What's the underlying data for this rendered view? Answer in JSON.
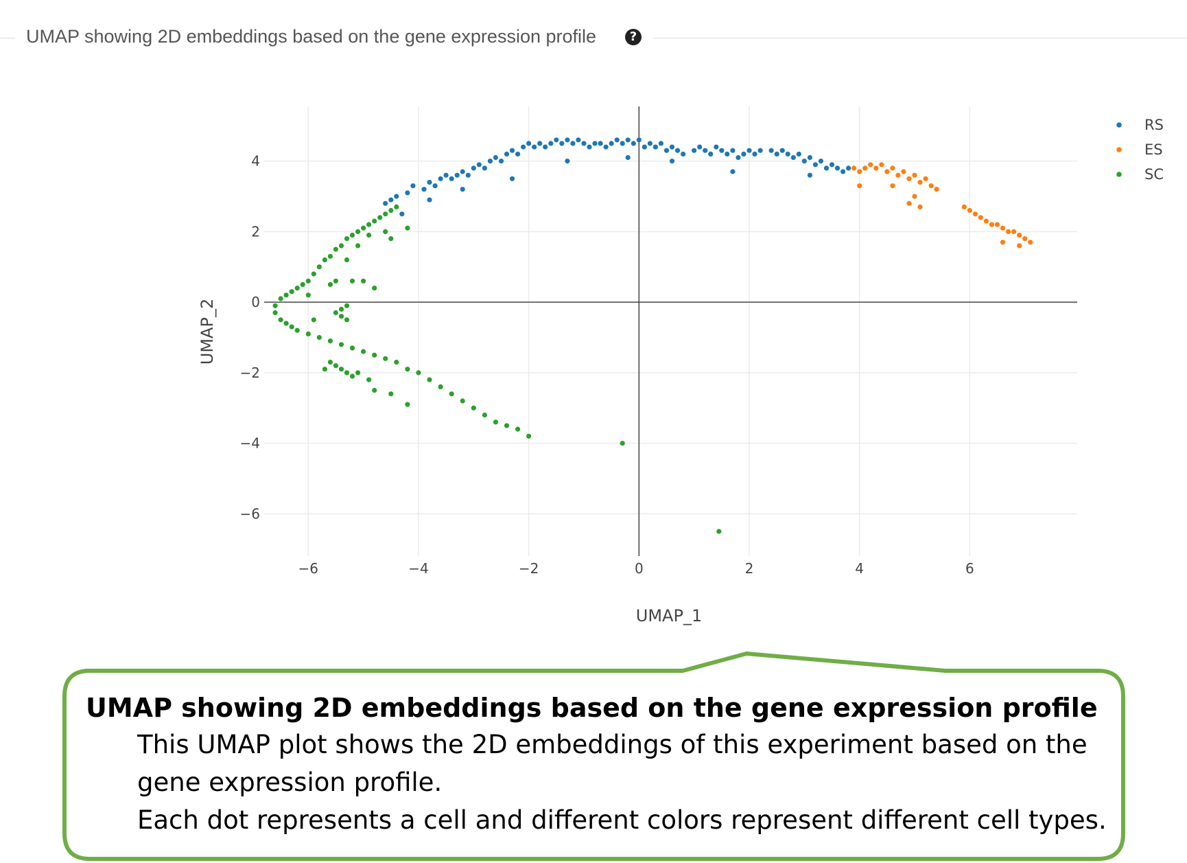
{
  "header": {
    "title": "UMAP showing 2D embeddings based on the gene expression profile",
    "help_icon": "question-circle-icon"
  },
  "chart_data": {
    "type": "scatter",
    "xlabel": "UMAP_1",
    "ylabel": "UMAP_2",
    "xlim": [
      -6.8,
      7.95
    ],
    "ylim": [
      -7.2,
      5.55
    ],
    "xticks": [
      -6,
      -4,
      -2,
      0,
      2,
      4,
      6
    ],
    "yticks": [
      -6,
      -4,
      -2,
      0,
      2,
      4
    ],
    "xtick_labels": [
      "−6",
      "−4",
      "−2",
      "0",
      "2",
      "4",
      "6"
    ],
    "ytick_labels": [
      "−6",
      "−4",
      "−2",
      "0",
      "2",
      "4"
    ],
    "grid": true,
    "zero_lines": true,
    "legend_position": "top-right",
    "series": [
      {
        "name": "RS",
        "color": "#1f77b4",
        "points": [
          [
            -4.6,
            2.8
          ],
          [
            -4.5,
            2.9
          ],
          [
            -4.4,
            3.0
          ],
          [
            -4.2,
            3.1
          ],
          [
            -4.1,
            3.3
          ],
          [
            -3.9,
            3.2
          ],
          [
            -3.8,
            3.4
          ],
          [
            -3.7,
            3.3
          ],
          [
            -3.6,
            3.5
          ],
          [
            -3.5,
            3.6
          ],
          [
            -3.4,
            3.5
          ],
          [
            -3.3,
            3.6
          ],
          [
            -3.2,
            3.7
          ],
          [
            -3.1,
            3.6
          ],
          [
            -3.0,
            3.8
          ],
          [
            -2.9,
            3.9
          ],
          [
            -2.8,
            3.8
          ],
          [
            -2.7,
            4.0
          ],
          [
            -2.6,
            4.1
          ],
          [
            -2.5,
            4.0
          ],
          [
            -2.4,
            4.2
          ],
          [
            -2.3,
            4.3
          ],
          [
            -2.2,
            4.2
          ],
          [
            -2.1,
            4.4
          ],
          [
            -2.0,
            4.5
          ],
          [
            -1.9,
            4.4
          ],
          [
            -1.8,
            4.5
          ],
          [
            -1.7,
            4.4
          ],
          [
            -1.6,
            4.5
          ],
          [
            -1.5,
            4.6
          ],
          [
            -1.4,
            4.5
          ],
          [
            -1.3,
            4.6
          ],
          [
            -1.2,
            4.5
          ],
          [
            -1.1,
            4.6
          ],
          [
            -1.0,
            4.5
          ],
          [
            -0.9,
            4.4
          ],
          [
            -0.8,
            4.5
          ],
          [
            -0.7,
            4.5
          ],
          [
            -0.6,
            4.4
          ],
          [
            -0.5,
            4.5
          ],
          [
            -0.4,
            4.6
          ],
          [
            -0.3,
            4.5
          ],
          [
            -0.2,
            4.6
          ],
          [
            -0.1,
            4.5
          ],
          [
            0.0,
            4.6
          ],
          [
            0.1,
            4.4
          ],
          [
            0.2,
            4.5
          ],
          [
            0.3,
            4.4
          ],
          [
            0.4,
            4.5
          ],
          [
            0.5,
            4.3
          ],
          [
            0.6,
            4.4
          ],
          [
            0.7,
            4.3
          ],
          [
            0.8,
            4.2
          ],
          [
            1.0,
            4.3
          ],
          [
            1.1,
            4.4
          ],
          [
            1.2,
            4.3
          ],
          [
            1.3,
            4.2
          ],
          [
            1.4,
            4.4
          ],
          [
            1.5,
            4.3
          ],
          [
            1.6,
            4.2
          ],
          [
            1.7,
            4.3
          ],
          [
            1.8,
            4.1
          ],
          [
            1.9,
            4.2
          ],
          [
            2.0,
            4.3
          ],
          [
            2.1,
            4.2
          ],
          [
            2.2,
            4.3
          ],
          [
            2.4,
            4.3
          ],
          [
            2.5,
            4.2
          ],
          [
            2.6,
            4.3
          ],
          [
            2.7,
            4.2
          ],
          [
            2.8,
            4.1
          ],
          [
            2.9,
            4.2
          ],
          [
            3.0,
            4.0
          ],
          [
            3.1,
            4.1
          ],
          [
            3.2,
            3.9
          ],
          [
            3.3,
            4.0
          ],
          [
            3.4,
            3.8
          ],
          [
            3.5,
            3.9
          ],
          [
            3.6,
            3.8
          ],
          [
            3.7,
            3.7
          ],
          [
            3.8,
            3.8
          ],
          [
            -4.3,
            2.5
          ],
          [
            -3.8,
            2.9
          ],
          [
            -3.2,
            3.2
          ],
          [
            -2.3,
            3.5
          ],
          [
            -1.3,
            4.0
          ],
          [
            -0.2,
            4.1
          ],
          [
            0.6,
            4.0
          ],
          [
            1.7,
            3.7
          ],
          [
            3.1,
            3.6
          ]
        ]
      },
      {
        "name": "ES",
        "color": "#ff7f0e",
        "points": [
          [
            3.9,
            3.8
          ],
          [
            4.0,
            3.7
          ],
          [
            4.1,
            3.8
          ],
          [
            4.2,
            3.9
          ],
          [
            4.3,
            3.8
          ],
          [
            4.4,
            3.9
          ],
          [
            4.5,
            3.7
          ],
          [
            4.6,
            3.8
          ],
          [
            4.7,
            3.6
          ],
          [
            4.8,
            3.7
          ],
          [
            4.9,
            3.5
          ],
          [
            5.0,
            3.6
          ],
          [
            5.1,
            3.4
          ],
          [
            5.2,
            3.5
          ],
          [
            5.3,
            3.3
          ],
          [
            5.4,
            3.2
          ],
          [
            4.0,
            3.3
          ],
          [
            4.6,
            3.3
          ],
          [
            4.9,
            2.8
          ],
          [
            5.0,
            3.0
          ],
          [
            5.1,
            2.7
          ],
          [
            5.9,
            2.7
          ],
          [
            6.0,
            2.6
          ],
          [
            6.1,
            2.5
          ],
          [
            6.2,
            2.4
          ],
          [
            6.3,
            2.3
          ],
          [
            6.4,
            2.2
          ],
          [
            6.5,
            2.2
          ],
          [
            6.6,
            2.1
          ],
          [
            6.7,
            2.0
          ],
          [
            6.8,
            2.0
          ],
          [
            6.9,
            1.9
          ],
          [
            7.0,
            1.8
          ],
          [
            7.1,
            1.7
          ],
          [
            6.9,
            1.6
          ],
          [
            6.6,
            1.7
          ]
        ]
      },
      {
        "name": "SC",
        "color": "#2ca02c",
        "points": [
          [
            -4.4,
            2.7
          ],
          [
            -4.5,
            2.6
          ],
          [
            -4.6,
            2.5
          ],
          [
            -4.7,
            2.4
          ],
          [
            -4.8,
            2.3
          ],
          [
            -4.9,
            2.2
          ],
          [
            -5.0,
            2.1
          ],
          [
            -5.1,
            2.0
          ],
          [
            -5.2,
            1.9
          ],
          [
            -5.3,
            1.8
          ],
          [
            -5.4,
            1.6
          ],
          [
            -5.5,
            1.5
          ],
          [
            -5.6,
            1.3
          ],
          [
            -5.7,
            1.2
          ],
          [
            -5.8,
            1.0
          ],
          [
            -5.9,
            0.8
          ],
          [
            -6.0,
            0.6
          ],
          [
            -6.1,
            0.5
          ],
          [
            -6.2,
            0.4
          ],
          [
            -6.3,
            0.3
          ],
          [
            -6.4,
            0.2
          ],
          [
            -6.5,
            0.1
          ],
          [
            -6.6,
            -0.1
          ],
          [
            -6.6,
            -0.3
          ],
          [
            -6.5,
            -0.5
          ],
          [
            -6.4,
            -0.6
          ],
          [
            -6.3,
            -0.7
          ],
          [
            -6.2,
            -0.8
          ],
          [
            -6.0,
            -0.9
          ],
          [
            -5.8,
            -1.0
          ],
          [
            -5.6,
            -1.1
          ],
          [
            -5.4,
            -1.2
          ],
          [
            -5.2,
            -1.3
          ],
          [
            -5.0,
            -1.4
          ],
          [
            -4.8,
            -1.5
          ],
          [
            -4.6,
            -1.6
          ],
          [
            -4.4,
            -1.7
          ],
          [
            -4.2,
            -1.9
          ],
          [
            -4.0,
            -2.0
          ],
          [
            -3.8,
            -2.2
          ],
          [
            -3.6,
            -2.4
          ],
          [
            -3.4,
            -2.6
          ],
          [
            -3.2,
            -2.8
          ],
          [
            -3.0,
            -3.0
          ],
          [
            -2.8,
            -3.2
          ],
          [
            -2.6,
            -3.4
          ],
          [
            -2.4,
            -3.5
          ],
          [
            -2.2,
            -3.6
          ],
          [
            -2.0,
            -3.8
          ],
          [
            -5.6,
            -1.7
          ],
          [
            -5.5,
            -1.8
          ],
          [
            -5.4,
            -1.9
          ],
          [
            -5.3,
            -2.0
          ],
          [
            -5.2,
            -2.1
          ],
          [
            -5.1,
            -2.0
          ],
          [
            -5.7,
            -1.9
          ],
          [
            -4.9,
            -2.2
          ],
          [
            -4.8,
            -2.5
          ],
          [
            -4.5,
            -2.6
          ],
          [
            -4.2,
            -2.9
          ],
          [
            -5.5,
            -0.3
          ],
          [
            -5.4,
            -0.4
          ],
          [
            -5.3,
            -0.5
          ],
          [
            -5.4,
            -0.2
          ],
          [
            -5.3,
            -0.1
          ],
          [
            -5.2,
            0.6
          ],
          [
            -5.0,
            0.6
          ],
          [
            -4.8,
            0.4
          ],
          [
            -5.5,
            0.6
          ],
          [
            -5.6,
            0.5
          ],
          [
            -6.0,
            0.2
          ],
          [
            -5.9,
            -0.5
          ],
          [
            -4.2,
            2.1
          ],
          [
            -4.6,
            2.0
          ],
          [
            -4.9,
            1.9
          ],
          [
            -5.1,
            1.6
          ],
          [
            -5.3,
            1.2
          ],
          [
            -4.5,
            1.8
          ],
          [
            -0.3,
            -4.0
          ],
          [
            1.45,
            -6.5
          ]
        ]
      }
    ]
  },
  "callout": {
    "title": "UMAP showing 2D embeddings based on the gene expression profile",
    "line1": "This UMAP plot shows the 2D embeddings of this experiment based on the gene expression profile.",
    "line2": "Each dot represents a cell and different colors represent different cell types."
  }
}
